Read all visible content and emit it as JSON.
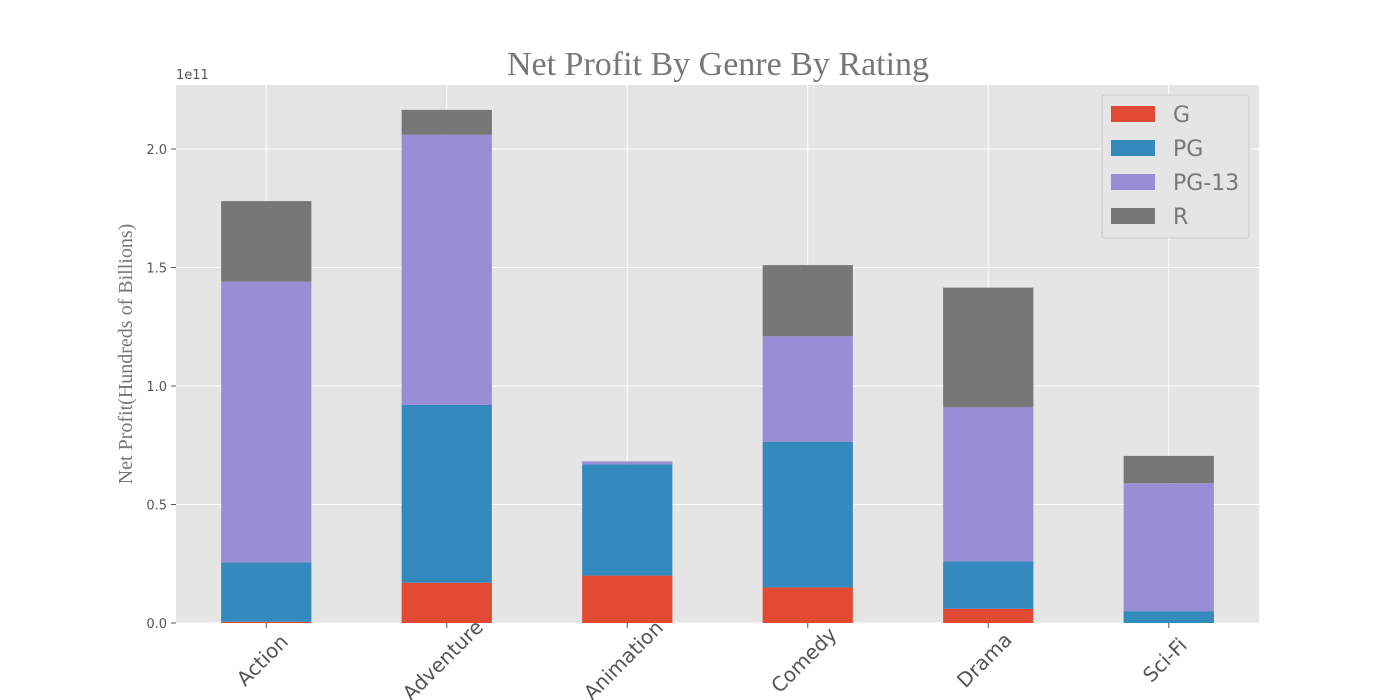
{
  "chart_data": {
    "type": "bar",
    "stacked": true,
    "title": "Net Profit By Genre By Rating",
    "ylabel": "Net Profit(Hundreds of Billions)",
    "xlabel": "",
    "y_offset_label": "1e11",
    "categories": [
      "Action",
      "Adventure",
      "Animation",
      "Comedy",
      "Drama",
      "Sci-Fi"
    ],
    "ylim": [
      0,
      2.27
    ],
    "yticks": [
      0.0,
      0.5,
      1.0,
      1.5,
      2.0
    ],
    "ytick_labels": [
      "0.0",
      "0.5",
      "1.0",
      "1.5",
      "2.0"
    ],
    "series": [
      {
        "name": "G",
        "color": "#E24A33",
        "values": [
          0.005,
          0.17,
          0.2,
          0.15,
          0.06,
          0.0
        ]
      },
      {
        "name": "PG",
        "color": "#348ABD",
        "values": [
          0.25,
          0.75,
          0.47,
          0.615,
          0.2,
          0.05
        ]
      },
      {
        "name": "PG-13",
        "color": "#988ED5",
        "values": [
          1.185,
          1.14,
          0.012,
          0.445,
          0.65,
          0.54
        ]
      },
      {
        "name": "R",
        "color": "#777777",
        "values": [
          0.34,
          0.105,
          0.0,
          0.3,
          0.505,
          0.115
        ]
      }
    ],
    "grid": true,
    "legend_position": "top-right"
  }
}
